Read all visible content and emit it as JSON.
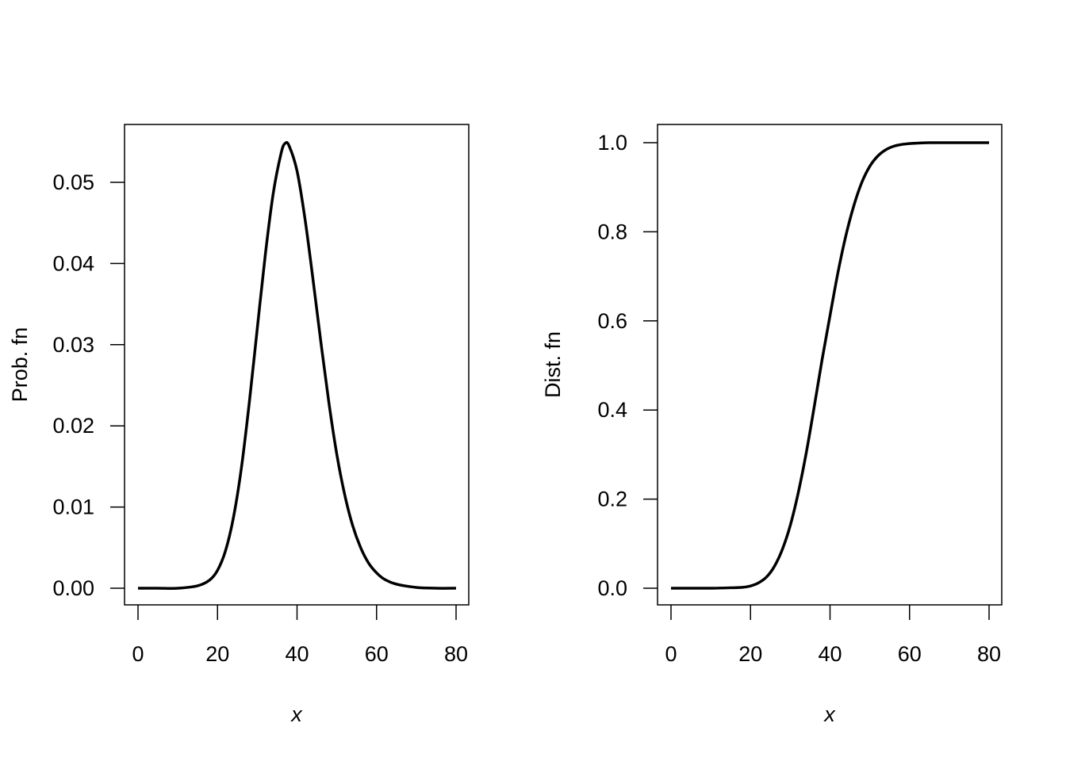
{
  "chart_data": [
    {
      "type": "line",
      "title": "",
      "xlabel": "x",
      "ylabel": "Prob. fn",
      "xlim": [
        0,
        80
      ],
      "ylim": [
        0,
        0.055
      ],
      "xticks": [
        "0",
        "20",
        "40",
        "60",
        "80"
      ],
      "yticks": [
        "0.00",
        "0.01",
        "0.02",
        "0.03",
        "0.04",
        "0.05"
      ],
      "grid": false,
      "x": [
        0,
        5,
        10,
        15,
        18,
        20,
        22,
        24,
        26,
        28,
        30,
        32,
        34,
        36,
        37,
        38,
        40,
        42,
        44,
        46,
        48,
        50,
        52,
        54,
        56,
        58,
        60,
        62,
        65,
        70,
        75,
        80
      ],
      "values": [
        0,
        0,
        0,
        0.0003,
        0.001,
        0.0022,
        0.0046,
        0.0087,
        0.0148,
        0.0229,
        0.032,
        0.041,
        0.0486,
        0.0536,
        0.0548,
        0.0545,
        0.0514,
        0.0455,
        0.0381,
        0.0303,
        0.0229,
        0.0165,
        0.0115,
        0.0077,
        0.005,
        0.0031,
        0.0019,
        0.0011,
        0.0005,
        0.0001,
        0,
        0
      ]
    },
    {
      "type": "line",
      "title": "",
      "xlabel": "x",
      "ylabel": "Dist. fn",
      "xlim": [
        0,
        80
      ],
      "ylim": [
        0,
        1
      ],
      "xticks": [
        "0",
        "20",
        "40",
        "60",
        "80"
      ],
      "yticks": [
        "0.0",
        "0.2",
        "0.4",
        "0.6",
        "0.8",
        "1.0"
      ],
      "grid": false,
      "x": [
        0,
        5,
        10,
        15,
        18,
        20,
        22,
        24,
        26,
        28,
        30,
        32,
        34,
        36,
        38,
        40,
        42,
        44,
        46,
        48,
        50,
        52,
        54,
        56,
        58,
        60,
        62,
        65,
        70,
        75,
        80
      ],
      "values": [
        0,
        0,
        0,
        0.001,
        0.002,
        0.005,
        0.012,
        0.025,
        0.049,
        0.087,
        0.141,
        0.214,
        0.303,
        0.406,
        0.513,
        0.612,
        0.709,
        0.792,
        0.859,
        0.911,
        0.947,
        0.97,
        0.984,
        0.992,
        0.996,
        0.998,
        0.999,
        1.0,
        1.0,
        1.0,
        1.0
      ]
    }
  ]
}
